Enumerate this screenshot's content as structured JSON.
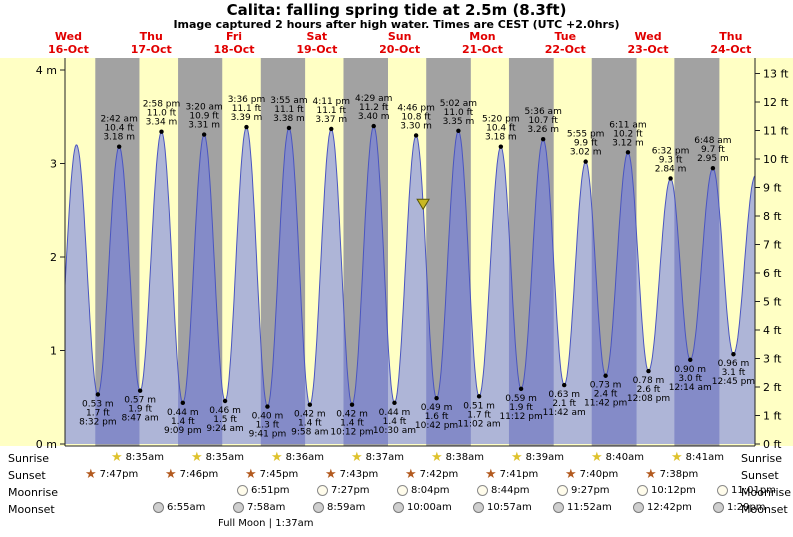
{
  "colors": {
    "day_band": "#ffffc4",
    "night_band": "#a2a2a2",
    "tide_fill": "#6c78e8",
    "tide_stroke": "#4a55c0",
    "day_label": "#e10000",
    "axis": "#222222",
    "now_marker": "#c9b822",
    "sunrise_star": "#dfc22e",
    "sunset_star": "#b35a1f"
  },
  "chart_data": {
    "type": "area",
    "title": "Calita: falling  spring tide at 2.5m (8.3ft)",
    "subtitle": "Image captured 2 hours after high water. Times are CEST (UTC +2.0hrs)",
    "ylim_m": [
      0,
      4
    ],
    "ylim_ft": [
      0,
      13
    ],
    "time_range_hours": [
      11,
      211
    ],
    "days": [
      {
        "weekday": "Wed",
        "date": "16-Oct"
      },
      {
        "weekday": "Thu",
        "date": "17-Oct"
      },
      {
        "weekday": "Fri",
        "date": "18-Oct"
      },
      {
        "weekday": "Sat",
        "date": "19-Oct"
      },
      {
        "weekday": "Sun",
        "date": "20-Oct"
      },
      {
        "weekday": "Mon",
        "date": "21-Oct"
      },
      {
        "weekday": "Tue",
        "date": "22-Oct"
      },
      {
        "weekday": "Wed",
        "date": "23-Oct"
      },
      {
        "weekday": "Thu",
        "date": "24-Oct"
      }
    ],
    "axis_left_labels": [
      {
        "value": 4,
        "text": "4 m"
      },
      {
        "value": 3,
        "text": "3"
      },
      {
        "value": 2,
        "text": "2"
      },
      {
        "value": 1,
        "text": "1"
      },
      {
        "value": 0,
        "text": "0 m"
      }
    ],
    "axis_right_labels": [
      {
        "value": 13,
        "text": "13 ft"
      },
      {
        "value": 12,
        "text": "12 ft"
      },
      {
        "value": 11,
        "text": "11 ft"
      },
      {
        "value": 10,
        "text": "10 ft"
      },
      {
        "value": 9,
        "text": "9 ft"
      },
      {
        "value": 8,
        "text": "8 ft"
      },
      {
        "value": 7,
        "text": "7 ft"
      },
      {
        "value": 6,
        "text": "6 ft"
      },
      {
        "value": 5,
        "text": "5 ft"
      },
      {
        "value": 4,
        "text": "4 ft"
      },
      {
        "value": 3,
        "text": "3 ft"
      },
      {
        "value": 2,
        "text": "2 ft"
      },
      {
        "value": 1,
        "text": "1 ft"
      },
      {
        "value": 0,
        "text": "0 ft"
      }
    ],
    "extremes": [
      {
        "t": 8.2,
        "height_m": 0.55,
        "type": "low",
        "lines": []
      },
      {
        "t": 14.33,
        "height_m": 3.2,
        "type": "high",
        "lines": []
      },
      {
        "t": 20.53,
        "height_m": 0.53,
        "type": "low",
        "lines": [
          "0.53 m",
          "1.7 ft",
          "8:32 pm"
        ]
      },
      {
        "t": 26.7,
        "height_m": 3.18,
        "type": "high",
        "lines": [
          "2:42 am",
          "10.4 ft",
          "3.18 m"
        ]
      },
      {
        "t": 32.78,
        "height_m": 0.57,
        "type": "low",
        "lines": [
          "0.57 m",
          "1.9 ft",
          "8:47 am"
        ]
      },
      {
        "t": 38.97,
        "height_m": 3.34,
        "type": "high",
        "lines": [
          "2:58 pm",
          "11.0 ft",
          "3.34 m"
        ]
      },
      {
        "t": 45.15,
        "height_m": 0.44,
        "type": "low",
        "lines": [
          "0.44 m",
          "1.4 ft",
          "9:09 pm"
        ]
      },
      {
        "t": 51.33,
        "height_m": 3.31,
        "type": "high",
        "lines": [
          "3:20 am",
          "10.9 ft",
          "3.31 m"
        ]
      },
      {
        "t": 57.4,
        "height_m": 0.46,
        "type": "low",
        "lines": [
          "0.46 m",
          "1.5 ft",
          "9:24 am"
        ]
      },
      {
        "t": 63.6,
        "height_m": 3.39,
        "type": "high",
        "lines": [
          "3:36 pm",
          "11.1 ft",
          "3.39 m"
        ]
      },
      {
        "t": 69.68,
        "height_m": 0.4,
        "type": "low",
        "lines": [
          "0.40 m",
          "1.3 ft",
          "9:41 pm"
        ]
      },
      {
        "t": 75.92,
        "height_m": 3.38,
        "type": "high",
        "lines": [
          "3:55 am",
          "11.1 ft",
          "3.38 m"
        ]
      },
      {
        "t": 81.97,
        "height_m": 0.42,
        "type": "low",
        "lines": [
          "0.42 m",
          "1.4 ft",
          "9:58 am"
        ]
      },
      {
        "t": 88.18,
        "height_m": 3.37,
        "type": "high",
        "lines": [
          "4:11 pm",
          "11.1 ft",
          "3.37 m"
        ]
      },
      {
        "t": 94.2,
        "height_m": 0.42,
        "type": "low",
        "lines": [
          "0.42 m",
          "1.4 ft",
          "10:12 pm"
        ]
      },
      {
        "t": 100.48,
        "height_m": 3.4,
        "type": "high",
        "lines": [
          "4:29 am",
          "11.2 ft",
          "3.40 m"
        ]
      },
      {
        "t": 106.5,
        "height_m": 0.44,
        "type": "low",
        "lines": [
          "0.44 m",
          "1.4 ft",
          "10:30 am"
        ]
      },
      {
        "t": 112.77,
        "height_m": 3.3,
        "type": "high",
        "lines": [
          "4:46 pm",
          "10.8 ft",
          "3.30 m"
        ]
      },
      {
        "t": 118.7,
        "height_m": 0.49,
        "type": "low",
        "lines": [
          "0.49 m",
          "1.6 ft",
          "10:42 pm"
        ]
      },
      {
        "t": 125.03,
        "height_m": 3.35,
        "type": "high",
        "lines": [
          "5:02 am",
          "11.0 ft",
          "3.35 m"
        ]
      },
      {
        "t": 131.03,
        "height_m": 0.51,
        "type": "low",
        "lines": [
          "0.51 m",
          "1.7 ft",
          "11:02 am"
        ]
      },
      {
        "t": 137.33,
        "height_m": 3.18,
        "type": "high",
        "lines": [
          "5:20 pm",
          "10.4 ft",
          "3.18 m"
        ]
      },
      {
        "t": 143.2,
        "height_m": 0.59,
        "type": "low",
        "lines": [
          "0.59 m",
          "1.9 ft",
          "11:12 pm"
        ]
      },
      {
        "t": 149.6,
        "height_m": 3.26,
        "type": "high",
        "lines": [
          "5:36 am",
          "10.7 ft",
          "3.26 m"
        ]
      },
      {
        "t": 155.7,
        "height_m": 0.63,
        "type": "low",
        "lines": [
          "0.63 m",
          "2.1 ft",
          "11:42 am"
        ]
      },
      {
        "t": 161.92,
        "height_m": 3.02,
        "type": "high",
        "lines": [
          "5:55 pm",
          "9.9 ft",
          "3.02 m"
        ]
      },
      {
        "t": 167.7,
        "height_m": 0.73,
        "type": "low",
        "lines": [
          "0.73 m",
          "2.4 ft",
          "11:42 pm"
        ]
      },
      {
        "t": 174.18,
        "height_m": 3.12,
        "type": "high",
        "lines": [
          "6:11 am",
          "10.2 ft",
          "3.12 m"
        ]
      },
      {
        "t": 180.13,
        "height_m": 0.78,
        "type": "low",
        "lines": [
          "0.78 m",
          "2.6 ft",
          "12:08 pm"
        ]
      },
      {
        "t": 186.53,
        "height_m": 2.84,
        "type": "high",
        "lines": [
          "6:32 pm",
          "9.3 ft",
          "2.84 m"
        ]
      },
      {
        "t": 192.23,
        "height_m": 0.9,
        "type": "low",
        "lines": [
          "0.90 m",
          "3.0 ft",
          "12:14 am"
        ]
      },
      {
        "t": 198.8,
        "height_m": 2.95,
        "type": "high",
        "lines": [
          "6:48 am",
          "9.7 ft",
          "2.95 m"
        ]
      },
      {
        "t": 204.75,
        "height_m": 0.96,
        "type": "low",
        "lines": [
          "0.96 m",
          "3.1 ft",
          "12:45 pm"
        ]
      },
      {
        "t": 211.1,
        "height_m": 2.87,
        "type": "high",
        "lines": []
      }
    ],
    "night_bands": [
      [
        19.78,
        32.58
      ],
      [
        43.77,
        56.58
      ],
      [
        67.75,
        80.6
      ],
      [
        91.72,
        104.62
      ],
      [
        115.7,
        128.63
      ],
      [
        139.68,
        152.65
      ],
      [
        163.67,
        176.67
      ],
      [
        187.63,
        200.68
      ]
    ],
    "now_marker": {
      "t": 114.8,
      "height_m": 2.5
    }
  },
  "astro": {
    "rows": [
      {
        "label": "Sunrise",
        "icon": "sunrise",
        "times": [
          "8:35am",
          "8:35am",
          "8:36am",
          "8:37am",
          "8:38am",
          "8:39am",
          "8:40am",
          "8:41am"
        ]
      },
      {
        "label": "Sunset",
        "icon": "sunset",
        "times": [
          "7:47pm",
          "7:46pm",
          "7:45pm",
          "7:43pm",
          "7:42pm",
          "7:41pm",
          "7:40pm",
          "7:38pm"
        ]
      },
      {
        "label": "Moonrise",
        "icon": "moonrise",
        "times": [
          "6:51pm",
          "7:27pm",
          "8:04pm",
          "8:44pm",
          "9:27pm",
          "10:12pm",
          "11:01pm"
        ]
      },
      {
        "label": "Moonset",
        "icon": "moonset",
        "times": [
          "6:55am",
          "7:58am",
          "8:59am",
          "10:00am",
          "10:57am",
          "11:52am",
          "12:42pm",
          "1:29pm"
        ]
      }
    ],
    "full_moon": "Full Moon | 1:37am"
  }
}
